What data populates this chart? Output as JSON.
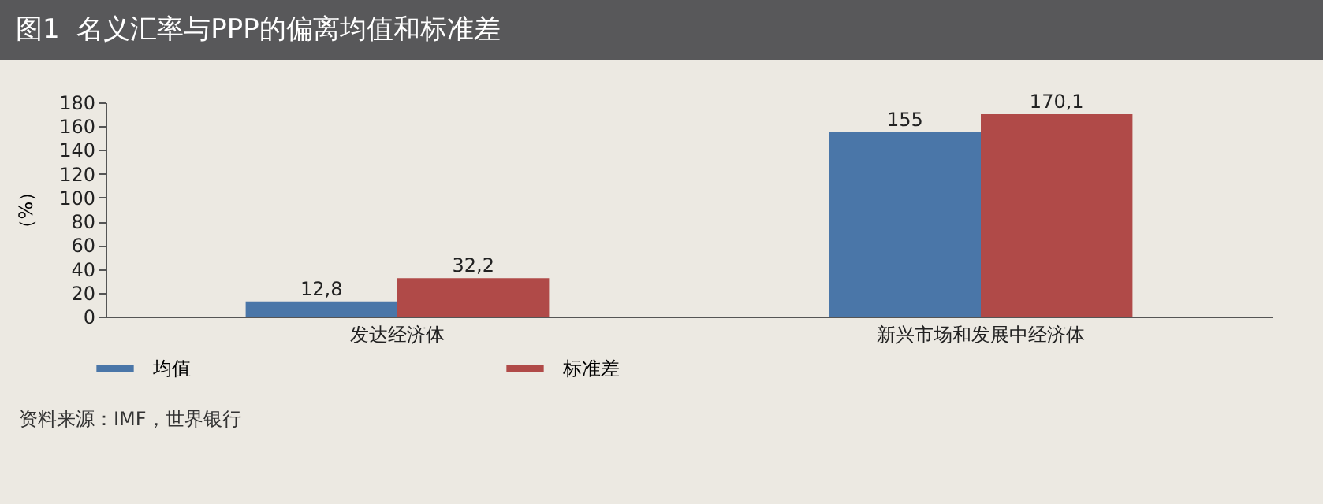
{
  "chart_data": {
    "type": "bar",
    "title": "图1  名义汇率与PPP的偏离均值和标准差",
    "ylabel": "（%）",
    "categories": [
      "发达经济体",
      "新兴市场和发展中经济体"
    ],
    "series": [
      {
        "name": "均值",
        "color": "#4a76a8",
        "values": [
          12.8,
          155
        ],
        "value_labels": [
          "12,8",
          "155"
        ]
      },
      {
        "name": "标准差",
        "color": "#b04a48",
        "values": [
          32.2,
          170.1
        ],
        "value_labels": [
          "32,2",
          "170,1"
        ]
      }
    ],
    "ylim": [
      0,
      180
    ],
    "yticks": [
      0,
      20,
      40,
      60,
      80,
      100,
      120,
      140,
      160,
      180
    ],
    "legend": "bottom",
    "annotations": [
      "资料来源：IMF，世界银行"
    ]
  }
}
